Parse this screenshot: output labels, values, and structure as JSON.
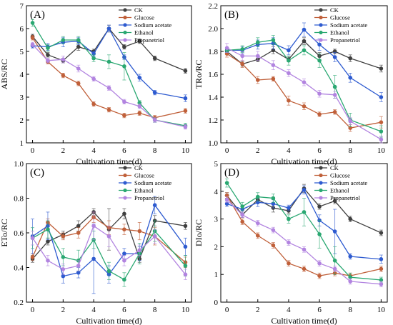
{
  "chart_data": [
    {
      "type": "line",
      "panel_label": "(A)",
      "ylabel": "ABS/RC",
      "xlabel": "Cultivation time(d)",
      "xlim": [
        -0.4,
        10.4
      ],
      "ylim": [
        1,
        7
      ],
      "xticks": [
        0,
        2,
        4,
        6,
        8,
        10
      ],
      "yticks": [
        1,
        2,
        3,
        4,
        5,
        6,
        7
      ],
      "x": [
        0,
        1,
        2,
        3,
        4,
        5,
        6,
        7,
        8,
        10
      ],
      "series": [
        {
          "name": "CK",
          "values": [
            5.65,
            4.85,
            4.6,
            5.2,
            5.0,
            6.0,
            5.2,
            5.45,
            4.7,
            4.15
          ],
          "err": [
            0.1,
            0.1,
            0.1,
            0.15,
            0.1,
            0.15,
            0.1,
            0.1,
            0.1,
            0.1
          ]
        },
        {
          "name": "Glucose",
          "values": [
            5.6,
            4.55,
            3.95,
            3.6,
            2.7,
            2.45,
            2.2,
            2.3,
            2.1,
            2.4
          ],
          "err": [
            0.1,
            0.1,
            0.1,
            0.1,
            0.1,
            0.1,
            0.1,
            0.1,
            0.1,
            0.1
          ]
        },
        {
          "name": "Sodium acetate",
          "values": [
            5.25,
            5.2,
            5.4,
            5.45,
            4.9,
            6.0,
            4.75,
            3.85,
            3.2,
            2.95
          ],
          "err": [
            0.1,
            0.15,
            0.2,
            0.15,
            0.1,
            0.15,
            0.1,
            0.15,
            0.1,
            0.15
          ]
        },
        {
          "name": "Ethanol",
          "values": [
            6.25,
            5.15,
            5.5,
            5.5,
            4.7,
            4.55,
            4.35,
            2.75,
            2.0,
            1.75
          ],
          "err": [
            0.15,
            0.15,
            0.15,
            0.15,
            0.15,
            0.3,
            0.6,
            0.1,
            0.1,
            0.1
          ]
        },
        {
          "name": "Propanetriol",
          "values": [
            5.3,
            4.6,
            4.65,
            4.25,
            3.8,
            3.4,
            2.8,
            2.6,
            2.0,
            1.7
          ],
          "err": [
            0.1,
            0.1,
            0.15,
            0.15,
            0.1,
            0.1,
            0.1,
            0.1,
            0.1,
            0.1
          ]
        }
      ]
    },
    {
      "type": "line",
      "panel_label": "(B)",
      "ylabel": "TRo/RC",
      "xlabel": "Cultivation time(d)",
      "xlim": [
        -0.4,
        10.4
      ],
      "ylim": [
        1.0,
        2.2
      ],
      "xticks": [
        0,
        2,
        4,
        6,
        8,
        10
      ],
      "yticks": [
        1.0,
        1.2,
        1.4,
        1.6,
        1.8,
        2.0,
        2.2
      ],
      "x": [
        0,
        1,
        2,
        3,
        4,
        5,
        6,
        7,
        8,
        10
      ],
      "series": [
        {
          "name": "CK",
          "values": [
            1.8,
            1.69,
            1.73,
            1.81,
            1.73,
            1.89,
            1.76,
            1.8,
            1.74,
            1.65
          ],
          "err": [
            0.02,
            0.02,
            0.02,
            0.03,
            0.02,
            0.03,
            0.03,
            0.02,
            0.03,
            0.03
          ]
        },
        {
          "name": "Glucose",
          "values": [
            1.78,
            1.69,
            1.55,
            1.56,
            1.37,
            1.32,
            1.25,
            1.27,
            1.13,
            1.18
          ],
          "err": [
            0.03,
            0.03,
            0.03,
            0.02,
            0.04,
            0.03,
            0.02,
            0.02,
            0.03,
            0.05
          ]
        },
        {
          "name": "Sodium acetate",
          "values": [
            1.81,
            1.81,
            1.86,
            1.87,
            1.81,
            1.99,
            1.86,
            1.75,
            1.57,
            1.4
          ],
          "err": [
            0.02,
            0.03,
            0.04,
            0.05,
            0.04,
            0.06,
            0.05,
            0.04,
            0.04,
            0.04
          ]
        },
        {
          "name": "Ethanol",
          "values": [
            1.81,
            1.82,
            1.88,
            1.9,
            1.72,
            1.81,
            1.72,
            1.49,
            1.2,
            1.1
          ],
          "err": [
            0.02,
            0.03,
            0.04,
            0.04,
            0.04,
            0.04,
            0.06,
            0.1,
            0.06,
            0.05
          ]
        },
        {
          "name": "Propanetriol",
          "values": [
            1.83,
            1.76,
            1.76,
            1.68,
            1.61,
            1.53,
            1.43,
            1.42,
            1.19,
            1.03
          ],
          "err": [
            0.04,
            0.04,
            0.04,
            0.04,
            0.03,
            0.03,
            0.03,
            0.03,
            0.03,
            0.03
          ]
        }
      ]
    },
    {
      "type": "line",
      "panel_label": "(C)",
      "ylabel": "ETo/RC",
      "xlabel": "Cultivation time(d)",
      "xlim": [
        -0.4,
        10.4
      ],
      "ylim": [
        0.2,
        1.0
      ],
      "xticks": [
        0,
        2,
        4,
        6,
        8,
        10
      ],
      "yticks": [
        0.2,
        0.4,
        0.6,
        0.8,
        1.0
      ],
      "x": [
        0,
        1,
        2,
        3,
        4,
        5,
        6,
        7,
        8,
        10
      ],
      "series": [
        {
          "name": "CK",
          "values": [
            0.45,
            0.55,
            0.59,
            0.64,
            0.72,
            0.62,
            0.71,
            0.45,
            0.67,
            0.64
          ],
          "err": [
            0.02,
            0.02,
            0.02,
            0.03,
            0.02,
            0.12,
            0.03,
            0.02,
            0.03,
            0.02
          ]
        },
        {
          "name": "Glucose",
          "values": [
            0.46,
            0.66,
            0.58,
            0.6,
            0.69,
            0.63,
            0.62,
            0.61,
            0.58,
            0.43
          ],
          "err": [
            0.02,
            0.02,
            0.02,
            0.03,
            0.03,
            0.04,
            0.03,
            0.05,
            0.05,
            0.03
          ]
        },
        {
          "name": "Sodium acetate",
          "values": [
            0.58,
            0.64,
            0.35,
            0.37,
            0.45,
            0.36,
            0.48,
            0.48,
            0.76,
            0.52
          ],
          "err": [
            0.1,
            0.08,
            0.04,
            0.03,
            0.2,
            0.05,
            0.03,
            0.04,
            0.05,
            0.05
          ]
        },
        {
          "name": "Ethanol",
          "values": [
            0.57,
            0.62,
            0.46,
            0.44,
            0.56,
            0.38,
            0.33,
            0.48,
            0.61,
            0.41
          ],
          "err": [
            0.06,
            0.05,
            0.05,
            0.06,
            0.05,
            0.05,
            0.04,
            0.06,
            0.06,
            0.06
          ]
        },
        {
          "name": "Propanetriol",
          "values": [
            0.57,
            0.44,
            0.39,
            0.41,
            0.64,
            0.58,
            0.44,
            0.5,
            0.58,
            0.36
          ],
          "err": [
            0.04,
            0.03,
            0.03,
            0.03,
            0.08,
            0.06,
            0.03,
            0.03,
            0.04,
            0.03
          ]
        }
      ]
    },
    {
      "type": "line",
      "panel_label": "(D)",
      "ylabel": "DIo/RC",
      "xlabel": "Cultivation time(d)",
      "xlim": [
        -0.4,
        10.4
      ],
      "ylim": [
        0,
        5
      ],
      "xticks": [
        0,
        2,
        4,
        6,
        8,
        10
      ],
      "yticks": [
        0,
        1,
        2,
        3,
        4,
        5
      ],
      "x": [
        0,
        1,
        2,
        3,
        4,
        5,
        6,
        7,
        8,
        10
      ],
      "series": [
        {
          "name": "CK",
          "values": [
            3.85,
            3.15,
            3.7,
            3.4,
            3.3,
            4.1,
            3.45,
            3.65,
            3.0,
            2.5
          ],
          "err": [
            0.1,
            0.1,
            0.1,
            0.15,
            0.1,
            0.15,
            0.1,
            0.1,
            0.1,
            0.1
          ]
        },
        {
          "name": "Glucose",
          "values": [
            3.85,
            2.9,
            2.4,
            2.05,
            1.4,
            1.2,
            0.95,
            1.05,
            0.95,
            1.2
          ],
          "err": [
            0.1,
            0.1,
            0.1,
            0.1,
            0.1,
            0.1,
            0.1,
            0.1,
            0.1,
            0.1
          ]
        },
        {
          "name": "Sodium acetate",
          "values": [
            3.55,
            3.35,
            3.6,
            3.55,
            3.4,
            4.05,
            2.95,
            2.55,
            1.65,
            1.55
          ],
          "err": [
            0.1,
            0.15,
            0.15,
            0.15,
            0.1,
            0.15,
            0.2,
            0.8,
            0.1,
            0.15
          ]
        },
        {
          "name": "Ethanol",
          "values": [
            4.3,
            3.45,
            3.8,
            3.75,
            3.0,
            3.25,
            2.45,
            1.5,
            0.9,
            0.8
          ],
          "err": [
            0.15,
            0.15,
            0.15,
            0.15,
            0.15,
            0.5,
            0.5,
            0.5,
            0.15,
            0.1
          ]
        },
        {
          "name": "Propanetriol",
          "values": [
            3.7,
            3.15,
            2.85,
            2.6,
            2.15,
            1.9,
            1.4,
            1.2,
            0.75,
            0.65
          ],
          "err": [
            0.1,
            0.1,
            0.1,
            0.1,
            0.1,
            0.1,
            0.1,
            0.1,
            0.1,
            0.1
          ]
        }
      ]
    }
  ],
  "colors": {
    "CK": "#404040",
    "Glucose": "#c0603a",
    "Sodium acetate": "#2e5bd0",
    "Ethanol": "#2aa872",
    "Propanetriol": "#b284e0"
  }
}
